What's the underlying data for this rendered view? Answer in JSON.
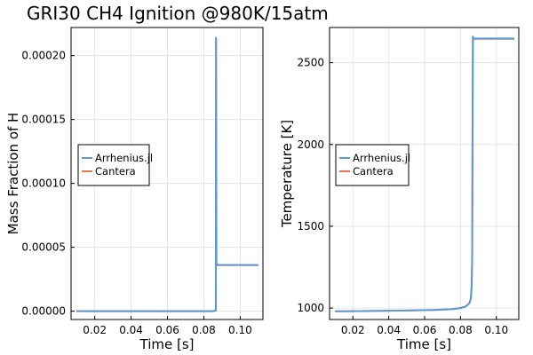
{
  "chart_data": [
    {
      "type": "line",
      "title": "GRI30 CH4 Ignition @980K/15atm",
      "xlabel": "Time [s]",
      "ylabel": "Mass Fraction of H",
      "xlim": [
        0.007,
        0.1125
      ],
      "ylim": [
        -6.5e-06,
        0.000222
      ],
      "xticks": [
        0.02,
        0.04,
        0.06,
        0.08,
        0.1
      ],
      "xtick_labels": [
        "0.02",
        "0.04",
        "0.06",
        "0.08",
        "0.10"
      ],
      "yticks": [
        0.0,
        5e-05,
        0.0001,
        0.00015,
        0.0002
      ],
      "ytick_labels": [
        "0.00000",
        "0.00005",
        "0.00010",
        "0.00015",
        "0.00020"
      ],
      "grid": true,
      "legend_position": "center-left",
      "series": [
        {
          "name": "Arrhenius.jl",
          "color": "#5b9bd5",
          "x": [
            0.01,
            0.085,
            0.0866,
            0.0867,
            0.08685,
            0.0869,
            0.0872,
            0.088,
            0.11
          ],
          "y": [
            0.0,
            0.0,
            5e-07,
            0.000214,
            0.00012,
            3.75e-05,
            3.65e-05,
            3.62e-05,
            3.62e-05
          ]
        },
        {
          "name": "Cantera",
          "color": "#e2794a",
          "x": [
            0.01,
            0.085,
            0.0866,
            0.0867,
            0.08685,
            0.0869,
            0.0872,
            0.088,
            0.11
          ],
          "y": [
            0.0,
            0.0,
            5e-07,
            0.000212,
            0.000118,
            3.7e-05,
            3.62e-05,
            3.6e-05,
            3.6e-05
          ]
        }
      ]
    },
    {
      "type": "line",
      "title": "",
      "xlabel": "Time [s]",
      "ylabel": "Temperature [K]",
      "xlim": [
        0.007,
        0.1125
      ],
      "ylim": [
        930,
        2715
      ],
      "xticks": [
        0.02,
        0.04,
        0.06,
        0.08,
        0.1
      ],
      "xtick_labels": [
        "0.02",
        "0.04",
        "0.06",
        "0.08",
        "0.10"
      ],
      "yticks": [
        1000,
        1500,
        2000,
        2500
      ],
      "ytick_labels": [
        "1000",
        "1500",
        "2000",
        "2500"
      ],
      "grid": true,
      "legend_position": "center-left",
      "series": [
        {
          "name": "Arrhenius.jl",
          "color": "#5b9bd5",
          "x": [
            0.01,
            0.03,
            0.05,
            0.065,
            0.075,
            0.08,
            0.083,
            0.085,
            0.0858,
            0.0862,
            0.0865,
            0.0867,
            0.0869,
            0.0872,
            0.0875,
            0.09,
            0.11
          ],
          "y": [
            980,
            982,
            985,
            988,
            993,
            1000,
            1010,
            1030,
            1060,
            1130,
            1300,
            2000,
            2660,
            2650,
            2648,
            2648,
            2648
          ]
        },
        {
          "name": "Cantera",
          "color": "#e2794a",
          "x": [
            0.01,
            0.03,
            0.05,
            0.065,
            0.075,
            0.08,
            0.083,
            0.085,
            0.0858,
            0.0862,
            0.0865,
            0.0867,
            0.0869,
            0.0872,
            0.0875,
            0.09,
            0.11
          ],
          "y": [
            980,
            982,
            985,
            988,
            993,
            1000,
            1010,
            1030,
            1060,
            1128,
            1295,
            1990,
            2655,
            2648,
            2646,
            2646,
            2646
          ]
        }
      ]
    }
  ]
}
